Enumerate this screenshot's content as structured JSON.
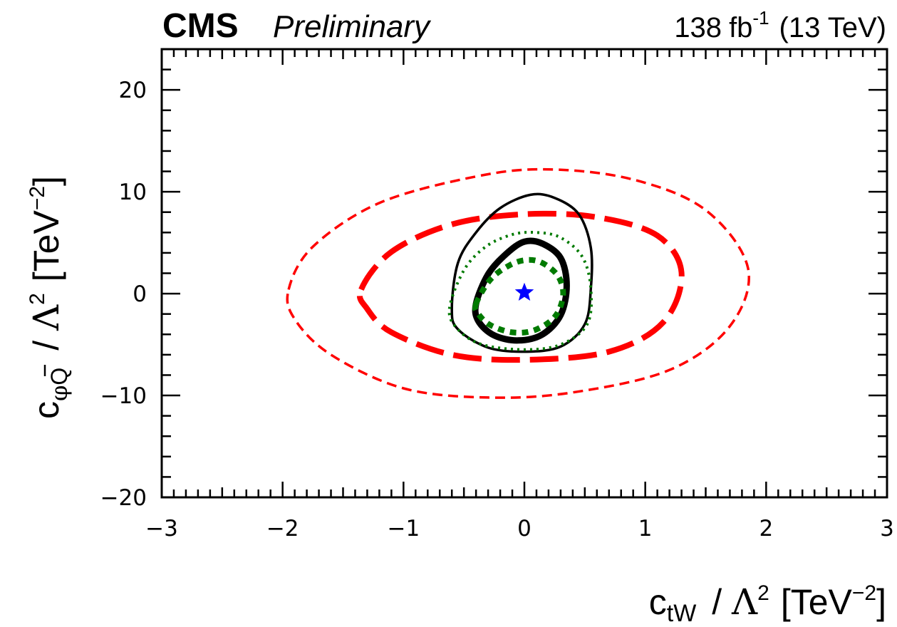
{
  "header": {
    "experiment": "CMS",
    "status": "Preliminary",
    "lumi_value": "138",
    "lumi_unit": "fb",
    "lumi_exp": "-1",
    "energy": "(13 TeV)"
  },
  "axes": {
    "x": {
      "var_base": "c",
      "var_sub": "tW",
      "lambda": "Λ",
      "power": "2",
      "unit_prefix": "[TeV",
      "unit_exp": "−2",
      "unit_suffix": "]"
    },
    "y": {
      "var_base": "c",
      "var_sub": "Q",
      "var_phi": "φ",
      "lambda": "Λ",
      "power": "2",
      "unit_prefix": "[TeV",
      "unit_exp": "−2",
      "unit_suffix": "]"
    }
  },
  "chart_data": {
    "type": "contour",
    "xlim": [
      -3,
      3
    ],
    "ylim": [
      -20,
      24
    ],
    "x_ticks": [
      -3,
      -2,
      -1,
      0,
      1,
      2,
      3
    ],
    "x_tick_labels": [
      "−3",
      "−2",
      "−1",
      "0",
      "1",
      "2",
      "3"
    ],
    "y_ticks": [
      -20,
      -10,
      0,
      10,
      20
    ],
    "y_tick_labels": [
      "−20",
      "−10",
      "0",
      "10",
      "20"
    ],
    "grid": false,
    "best_fit": {
      "x": 0.0,
      "y": 0.1,
      "marker": "star",
      "color": "#0000ff"
    },
    "contours": [
      {
        "style": "red-thin-dashed",
        "color": "#ff0000",
        "points": [
          [
            -1.95,
            0.4
          ],
          [
            -1.75,
            4.6
          ],
          [
            -1.2,
            8.9
          ],
          [
            -0.4,
            11.5
          ],
          [
            0.2,
            12.2
          ],
          [
            0.9,
            11.2
          ],
          [
            1.5,
            8.2
          ],
          [
            1.85,
            2.5
          ],
          [
            1.7,
            -3.2
          ],
          [
            1.2,
            -7.5
          ],
          [
            0.4,
            -9.7
          ],
          [
            -0.3,
            -10.2
          ],
          [
            -1.0,
            -9.3
          ],
          [
            -1.6,
            -6.0
          ],
          [
            -1.9,
            -2.5
          ]
        ]
      },
      {
        "style": "red-thick-dashed",
        "color": "#ff0000",
        "points": [
          [
            -1.35,
            0.4
          ],
          [
            -1.1,
            4.1
          ],
          [
            -0.6,
            6.8
          ],
          [
            0.0,
            7.8
          ],
          [
            0.6,
            7.5
          ],
          [
            1.1,
            5.7
          ],
          [
            1.3,
            2.0
          ],
          [
            1.15,
            -2.8
          ],
          [
            0.7,
            -5.7
          ],
          [
            0.0,
            -6.5
          ],
          [
            -0.6,
            -6.0
          ],
          [
            -1.1,
            -3.8
          ],
          [
            -1.3,
            -1.5
          ]
        ]
      },
      {
        "style": "black-thin-solid",
        "color": "#000000",
        "points": [
          [
            -0.6,
            -1.5
          ],
          [
            -0.55,
            3.0
          ],
          [
            -0.4,
            6.0
          ],
          [
            -0.2,
            8.4
          ],
          [
            0.05,
            9.7
          ],
          [
            0.25,
            9.4
          ],
          [
            0.45,
            7.8
          ],
          [
            0.55,
            4.5
          ],
          [
            0.55,
            0.5
          ],
          [
            0.5,
            -3.0
          ],
          [
            0.3,
            -5.2
          ],
          [
            0.0,
            -5.7
          ],
          [
            -0.3,
            -5.3
          ],
          [
            -0.55,
            -3.5
          ]
        ]
      },
      {
        "style": "green-thin-dotted",
        "color": "#007a00",
        "points": [
          [
            -0.62,
            -1.5
          ],
          [
            -0.5,
            2.3
          ],
          [
            -0.32,
            4.6
          ],
          [
            -0.1,
            5.8
          ],
          [
            0.1,
            6.0
          ],
          [
            0.3,
            5.5
          ],
          [
            0.48,
            3.6
          ],
          [
            0.55,
            0.5
          ],
          [
            0.52,
            -3.0
          ],
          [
            0.3,
            -5.0
          ],
          [
            0.0,
            -5.5
          ],
          [
            -0.35,
            -5.0
          ],
          [
            -0.55,
            -3.5
          ]
        ]
      },
      {
        "style": "black-thick-solid",
        "color": "#000000",
        "points": [
          [
            -0.4,
            -1.0
          ],
          [
            -0.3,
            1.9
          ],
          [
            -0.15,
            3.9
          ],
          [
            0.0,
            5.1
          ],
          [
            0.15,
            4.9
          ],
          [
            0.3,
            3.5
          ],
          [
            0.35,
            0.8
          ],
          [
            0.3,
            -2.1
          ],
          [
            0.15,
            -4.0
          ],
          [
            -0.05,
            -4.6
          ],
          [
            -0.25,
            -4.1
          ],
          [
            -0.38,
            -2.7
          ]
        ]
      },
      {
        "style": "green-thick-dotted",
        "color": "#007a00",
        "points": [
          [
            -0.4,
            -1.0
          ],
          [
            -0.28,
            1.4
          ],
          [
            -0.12,
            2.8
          ],
          [
            0.02,
            3.3
          ],
          [
            0.15,
            3.0
          ],
          [
            0.28,
            1.7
          ],
          [
            0.32,
            -0.2
          ],
          [
            0.25,
            -2.3
          ],
          [
            0.08,
            -3.6
          ],
          [
            -0.1,
            -3.8
          ],
          [
            -0.28,
            -3.1
          ],
          [
            -0.38,
            -2.0
          ]
        ]
      }
    ]
  }
}
